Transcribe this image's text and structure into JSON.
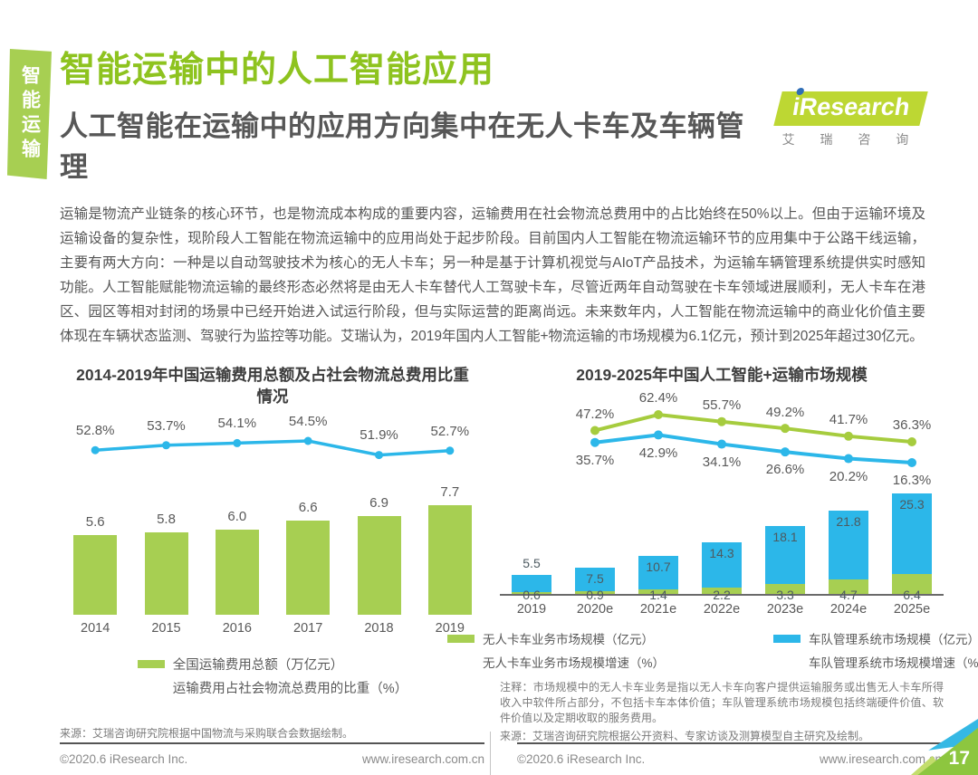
{
  "page": {
    "number": "17"
  },
  "sidebar_tab": {
    "label": "智能运输"
  },
  "header": {
    "title": "智能运输中的人工智能应用",
    "subtitle": "人工智能在运输中的应用方向集中在无人卡车及车辆管理"
  },
  "logo": {
    "brand_i": "i",
    "brand_rest": "Research",
    "cn": "艾 瑞 咨 询"
  },
  "body_text": "运输是物流产业链条的核心环节，也是物流成本构成的重要内容，运输费用在社会物流总费用中的占比始终在50%以上。但由于运输环境及运输设备的复杂性，现阶段人工智能在物流运输中的应用尚处于起步阶段。目前国内人工智能在物流运输环节的应用集中于公路干线运输，主要有两大方向：一种是以自动驾驶技术为核心的无人卡车；另一种是基于计算机视觉与AIoT产品技术，为运输车辆管理系统提供实时感知功能。人工智能赋能物流运输的最终形态必然将是由无人卡车替代人工驾驶卡车，尽管近两年自动驾驶在卡车领域进展顺利，无人卡车在港区、园区等相对封闭的场景中已经开始进入试运行阶段，但与实际运营的距离尚远。未来数年内，人工智能在物流运输中的商业化价值主要体现在车辆状态监测、驾驶行为监控等功能。艾瑞认为，2019年国内人工智能+物流运输的市场规模为6.1亿元，预计到2025年超过30亿元。",
  "chart_data": [
    {
      "type": "bar",
      "title": "2014-2019年中国运输费用总额及占社会物流总费用比重情况",
      "categories": [
        "2014",
        "2015",
        "2016",
        "2017",
        "2018",
        "2019"
      ],
      "series": [
        {
          "name": "全国运输费用总额（万亿元）",
          "type": "bar",
          "color": "#a7cf52",
          "values": [
            5.6,
            5.8,
            6.0,
            6.6,
            6.9,
            7.7
          ]
        },
        {
          "name": "运输费用占社会物流总费用的比重（%）",
          "type": "line",
          "color": "#2cb7e9",
          "values": [
            52.8,
            53.7,
            54.1,
            54.5,
            51.9,
            52.7
          ]
        }
      ],
      "ylim": [
        0,
        9
      ],
      "legend_position": "bottom",
      "grid": false,
      "source": "来源：艾瑞咨询研究院根据中国物流与采购联合会数据绘制。"
    },
    {
      "type": "bar",
      "title": "2019-2025年中国人工智能+运输市场规模",
      "categories": [
        "2019",
        "2020e",
        "2021e",
        "2022e",
        "2023e",
        "2024e",
        "2025e"
      ],
      "series": [
        {
          "name": "无人卡车业务市场规模（亿元）",
          "type": "bar",
          "stacked": true,
          "color": "#a7cf52",
          "values": [
            0.6,
            0.9,
            1.4,
            2.2,
            3.3,
            4.7,
            6.4
          ]
        },
        {
          "name": "车队管理系统市场规模（亿元）",
          "type": "bar",
          "stacked": true,
          "color": "#2cb7e9",
          "values": [
            5.5,
            7.5,
            10.7,
            14.3,
            18.1,
            21.8,
            25.3
          ]
        },
        {
          "name": "无人卡车业务市场规模增速（%）",
          "type": "line",
          "color": "#a6cc3e",
          "values": [
            null,
            47.2,
            62.4,
            55.7,
            49.2,
            41.7,
            36.3
          ]
        },
        {
          "name": "车队管理系统市场规模增速（%）",
          "type": "line",
          "color": "#2cb7e9",
          "values": [
            null,
            35.7,
            42.9,
            34.1,
            26.6,
            20.2,
            16.3
          ]
        }
      ],
      "ylim": [
        0,
        35
      ],
      "legend_position": "bottom",
      "grid": false,
      "note": "注释：市场规模中的无人卡车业务是指以无人卡车向客户提供运输服务或出售无人卡车所得收入中软件所占部分，不包括卡车本体价值；车队管理系统市场规模包括终端硬件价值、软件价值以及定期收取的服务费用。",
      "source": "来源：艾瑞咨询研究院根据公开资料、专家访谈及测算模型自主研究及绘制。"
    }
  ],
  "footer": {
    "left": {
      "copyright": "©2020.6 iResearch Inc.",
      "url": "www.iresearch.com.cn"
    },
    "right": {
      "copyright": "©2020.6 iResearch Inc.",
      "url": "www.iresearch.com.cn"
    }
  },
  "colors": {
    "accent_green": "#8ec31f",
    "bar_green": "#a7cf52",
    "line_blue": "#2cb7e9",
    "logo_green": "#bdd733"
  }
}
